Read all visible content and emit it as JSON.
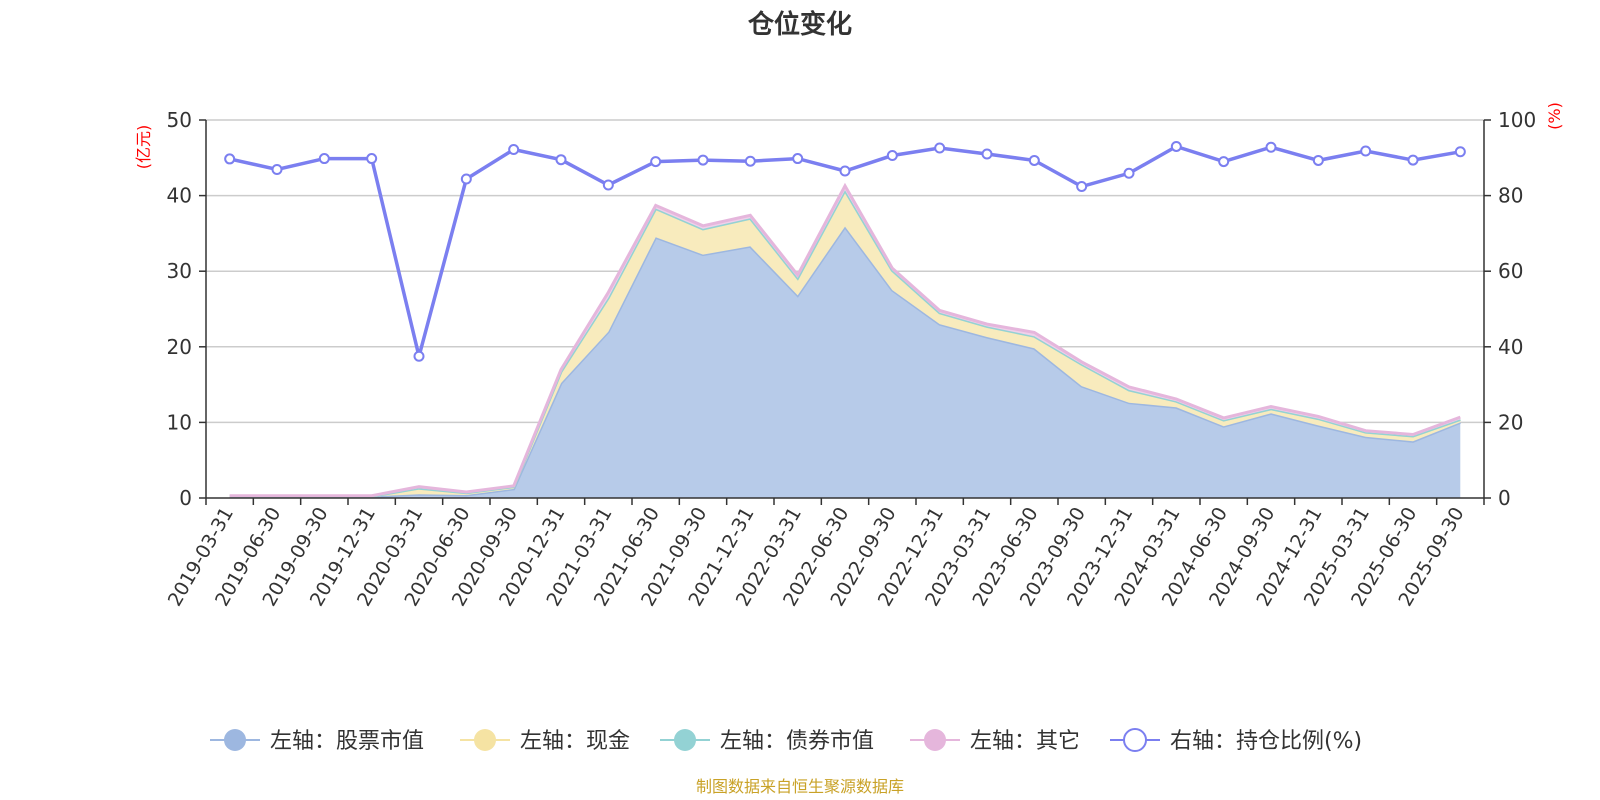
{
  "chart_data": {
    "title": "仓位变化",
    "type": "area",
    "categories": [
      "2019-03-31",
      "2019-06-30",
      "2019-09-30",
      "2019-12-31",
      "2020-03-31",
      "2020-06-30",
      "2020-09-30",
      "2020-12-31",
      "2021-03-31",
      "2021-06-30",
      "2021-09-30",
      "2021-12-31",
      "2022-03-31",
      "2022-06-30",
      "2022-09-30",
      "2022-12-31",
      "2023-03-31",
      "2023-06-30",
      "2023-09-30",
      "2023-12-31",
      "2024-03-31",
      "2024-06-30",
      "2024-09-30",
      "2024-12-31",
      "2025-03-31",
      "2025-06-30",
      "2025-09-30"
    ],
    "left_axis": {
      "unit": "(亿元)",
      "ylim": [
        0,
        50
      ],
      "ticks": [
        0,
        10,
        20,
        30,
        40,
        50
      ]
    },
    "right_axis": {
      "unit": "(%)",
      "ylim": [
        0,
        100
      ],
      "ticks": [
        0,
        20,
        40,
        60,
        80,
        100
      ]
    },
    "series": [
      {
        "name": "左轴：股票市值",
        "axis": "left",
        "type": "area",
        "color": "#9db7e0",
        "fill": "#b7cbe9",
        "values": [
          0.2,
          0.2,
          0.2,
          0.2,
          0.5,
          0.4,
          1.2,
          15.2,
          22.0,
          34.5,
          32.2,
          33.3,
          26.8,
          35.9,
          27.5,
          23.0,
          21.3,
          19.8,
          14.8,
          12.6,
          12.0,
          9.5,
          11.2,
          9.6,
          8.1,
          7.5,
          10.0
        ]
      },
      {
        "name": "左轴：现金",
        "axis": "left",
        "type": "area",
        "color": "#f5e3a3",
        "fill": "#f8ebbd",
        "values": [
          0.05,
          0.05,
          0.05,
          0.05,
          0.8,
          0.3,
          0.3,
          1.5,
          4.5,
          3.8,
          3.4,
          3.7,
          2.3,
          4.8,
          2.6,
          1.5,
          1.4,
          1.6,
          2.9,
          1.7,
          0.8,
          0.8,
          0.6,
          0.9,
          0.6,
          0.7,
          0.4
        ]
      },
      {
        "name": "左轴：债券市值",
        "axis": "left",
        "type": "area",
        "color": "#93d2d4",
        "fill": "#b3e0e1",
        "values": [
          0,
          0,
          0,
          0,
          0,
          0,
          0,
          0,
          0,
          0,
          0,
          0,
          0,
          0,
          0,
          0,
          0,
          0,
          0,
          0,
          0,
          0,
          0,
          0,
          0,
          0,
          0
        ]
      },
      {
        "name": "左轴：其它",
        "axis": "left",
        "type": "area",
        "color": "#e5b6dc",
        "fill": "#f0d0ea",
        "values": [
          0.05,
          0.05,
          0.05,
          0.05,
          0.2,
          0.1,
          0.1,
          0.3,
          0.7,
          0.4,
          0.4,
          0.4,
          0.4,
          0.6,
          0.3,
          0.3,
          0.3,
          0.5,
          0.3,
          0.4,
          0.3,
          0.3,
          0.3,
          0.3,
          0.2,
          0.2,
          0.3
        ]
      },
      {
        "name": "右轴：持仓比例(%)",
        "axis": "right",
        "type": "line",
        "color": "#7b7ff0",
        "values": [
          89.7,
          86.9,
          89.8,
          89.8,
          37.5,
          84.4,
          92.2,
          89.5,
          82.8,
          89.0,
          89.4,
          89.1,
          89.8,
          86.5,
          90.6,
          92.6,
          91.0,
          89.3,
          82.4,
          85.9,
          93.0,
          89.0,
          92.8,
          89.3,
          91.8,
          89.4,
          91.6
        ]
      }
    ],
    "legend_position": "bottom",
    "grid": true,
    "source": "制图数据来自恒生聚源数据库"
  }
}
